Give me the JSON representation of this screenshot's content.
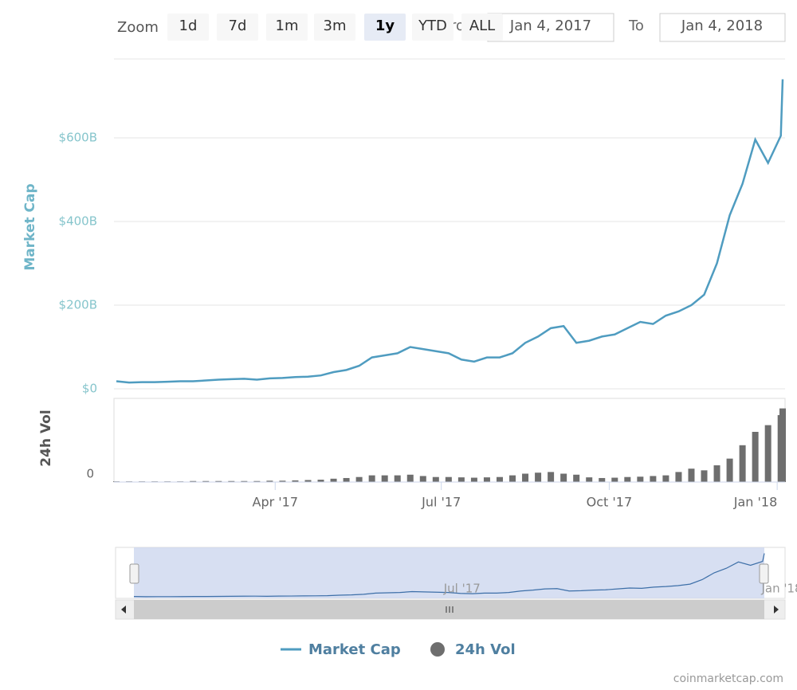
{
  "toolbar": {
    "zoom_label": "Zoom",
    "buttons": [
      "1d",
      "7d",
      "1m",
      "3m",
      "1y",
      "YTD",
      "ALL"
    ],
    "selected": "1y",
    "from_label": "From",
    "from": "Jan 4, 2017",
    "to_label": "To",
    "to": "Jan 4, 2018"
  },
  "chart_data": [
    {
      "type": "line",
      "y_label": "Market Cap",
      "x": [
        "2017-01-04",
        "2017-01-11",
        "2017-01-18",
        "2017-01-25",
        "2017-02-01",
        "2017-02-08",
        "2017-02-15",
        "2017-02-22",
        "2017-03-01",
        "2017-03-08",
        "2017-03-15",
        "2017-03-22",
        "2017-03-29",
        "2017-04-05",
        "2017-04-12",
        "2017-04-19",
        "2017-04-26",
        "2017-05-03",
        "2017-05-10",
        "2017-05-17",
        "2017-05-24",
        "2017-05-31",
        "2017-06-07",
        "2017-06-14",
        "2017-06-21",
        "2017-06-28",
        "2017-07-05",
        "2017-07-12",
        "2017-07-19",
        "2017-07-26",
        "2017-08-02",
        "2017-08-09",
        "2017-08-16",
        "2017-08-23",
        "2017-08-30",
        "2017-09-06",
        "2017-09-13",
        "2017-09-20",
        "2017-09-27",
        "2017-10-04",
        "2017-10-11",
        "2017-10-18",
        "2017-10-25",
        "2017-11-01",
        "2017-11-08",
        "2017-11-15",
        "2017-11-22",
        "2017-11-29",
        "2017-12-06",
        "2017-12-13",
        "2017-12-20",
        "2017-12-27",
        "2018-01-03",
        "2018-01-04"
      ],
      "series": [
        {
          "name": "Market Cap",
          "color": "#4f9cc0",
          "values": [
            18,
            15,
            16,
            16,
            17,
            18,
            18,
            20,
            22,
            23,
            24,
            22,
            25,
            26,
            28,
            29,
            32,
            40,
            45,
            55,
            75,
            80,
            85,
            100,
            95,
            90,
            85,
            70,
            65,
            75,
            75,
            85,
            110,
            125,
            145,
            150,
            110,
            115,
            125,
            130,
            145,
            160,
            155,
            175,
            185,
            200,
            225,
            300,
            415,
            490,
            596,
            540,
            605,
            740
          ]
        }
      ],
      "xlim": [
        "2017-01-04",
        "2018-01-04"
      ],
      "ylim": [
        0,
        800
      ],
      "yticks": [
        {
          "value": 0,
          "label": "$0"
        },
        {
          "value": 200,
          "label": "$200B"
        },
        {
          "value": 400,
          "label": "$400B"
        },
        {
          "value": 600,
          "label": "$600B"
        }
      ],
      "grid": true
    },
    {
      "type": "bar",
      "y_label": "24h Vol",
      "x": [
        "2017-01-04",
        "2017-01-11",
        "2017-01-18",
        "2017-01-25",
        "2017-02-01",
        "2017-02-08",
        "2017-02-15",
        "2017-02-22",
        "2017-03-01",
        "2017-03-08",
        "2017-03-15",
        "2017-03-22",
        "2017-03-29",
        "2017-04-05",
        "2017-04-12",
        "2017-04-19",
        "2017-04-26",
        "2017-05-03",
        "2017-05-10",
        "2017-05-17",
        "2017-05-24",
        "2017-05-31",
        "2017-06-07",
        "2017-06-14",
        "2017-06-21",
        "2017-06-28",
        "2017-07-05",
        "2017-07-12",
        "2017-07-19",
        "2017-07-26",
        "2017-08-02",
        "2017-08-09",
        "2017-08-16",
        "2017-08-23",
        "2017-08-30",
        "2017-09-06",
        "2017-09-13",
        "2017-09-20",
        "2017-09-27",
        "2017-10-04",
        "2017-10-11",
        "2017-10-18",
        "2017-10-25",
        "2017-11-01",
        "2017-11-08",
        "2017-11-15",
        "2017-11-22",
        "2017-11-29",
        "2017-12-06",
        "2017-12-13",
        "2017-12-20",
        "2017-12-27",
        "2018-01-03",
        "2018-01-04"
      ],
      "series": [
        {
          "name": "24h Vol",
          "color": "#6e6e6e",
          "values": [
            0.2,
            0.2,
            0.2,
            0.2,
            0.2,
            0.2,
            0.3,
            0.3,
            0.3,
            0.3,
            0.3,
            0.3,
            0.4,
            0.4,
            0.5,
            0.6,
            0.7,
            1,
            1.2,
            1.5,
            2,
            2,
            2,
            2.2,
            1.8,
            1.5,
            1.5,
            1.4,
            1.3,
            1.4,
            1.5,
            2,
            2.5,
            2.8,
            3,
            2.5,
            2.2,
            1.4,
            1.2,
            1.3,
            1.5,
            1.6,
            1.8,
            2,
            3,
            4,
            3.5,
            5,
            7,
            11,
            15,
            17,
            20,
            22
          ]
        }
      ],
      "xlim": [
        "2017-01-04",
        "2018-01-04"
      ],
      "ylim": [
        0,
        25
      ],
      "yticks": [
        0
      ],
      "xticks": [
        {
          "value": "2017-04-01",
          "label": "Apr '17"
        },
        {
          "value": "2017-07-01",
          "label": "Jul '17"
        },
        {
          "value": "2017-10-01",
          "label": "Oct '17"
        },
        {
          "value": "2018-01-01",
          "label": "Jan '18"
        }
      ]
    }
  ],
  "credits": "coinmarketcap.com"
}
